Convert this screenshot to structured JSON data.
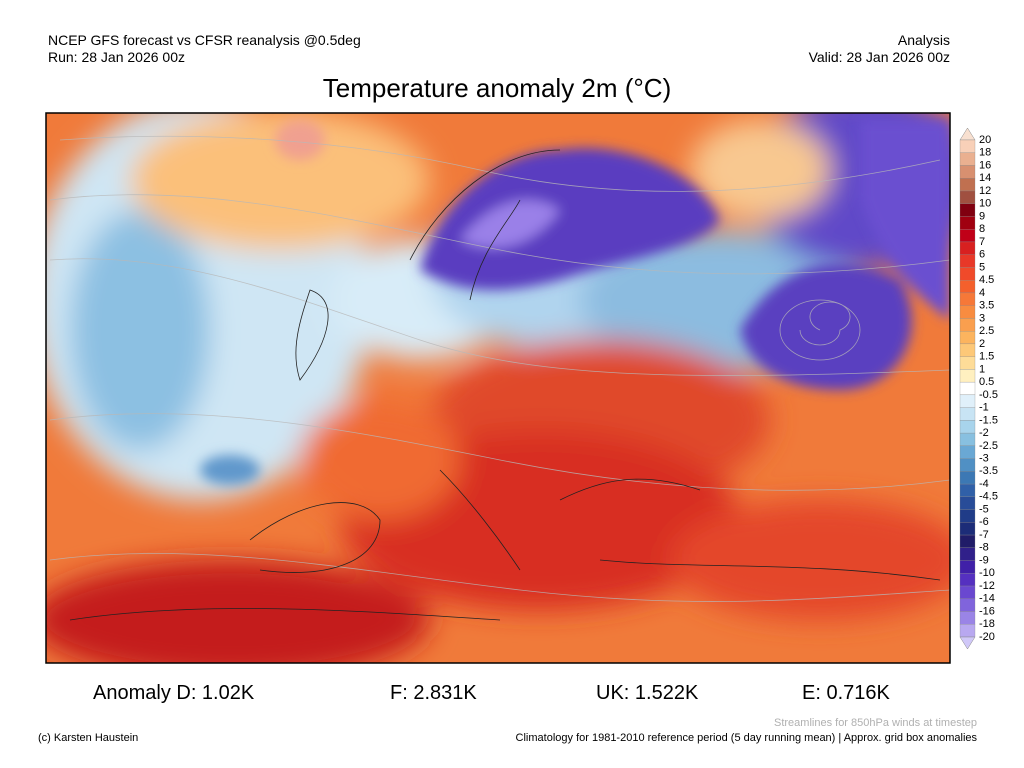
{
  "header": {
    "left_line1": "NCEP GFS forecast vs CFSR reanalysis @0.5deg",
    "left_line2": "Run: 28 Jan 2026 00z",
    "right_line1": "Analysis",
    "right_line2": "Valid: 28 Jan 2026 00z"
  },
  "title": "Temperature anomaly 2m (°C)",
  "colorbar": {
    "labels": [
      "20",
      "18",
      "16",
      "14",
      "12",
      "10",
      "9",
      "8",
      "7",
      "6",
      "5",
      "4.5",
      "4",
      "3.5",
      "3",
      "2.5",
      "2",
      "1.5",
      "1",
      "0.5",
      "-0.5",
      "-1",
      "-1.5",
      "-2",
      "-2.5",
      "-3",
      "-3.5",
      "-4",
      "-4.5",
      "-5",
      "-6",
      "-7",
      "-8",
      "-9",
      "-10",
      "-12",
      "-14",
      "-16",
      "-18",
      "-20"
    ]
  },
  "anomalies": [
    "Anomaly D: 1.02K",
    "F: 2.831K",
    "UK: 1.522K",
    "E: 0.716K"
  ],
  "footer": {
    "streamlines": "Streamlines for 850hPa winds at timestep",
    "copyright": "(c) Karsten Haustein",
    "climatology": "Climatology for 1981-2010 reference period (5 day running mean) | Approx. grid box anomalies"
  }
}
